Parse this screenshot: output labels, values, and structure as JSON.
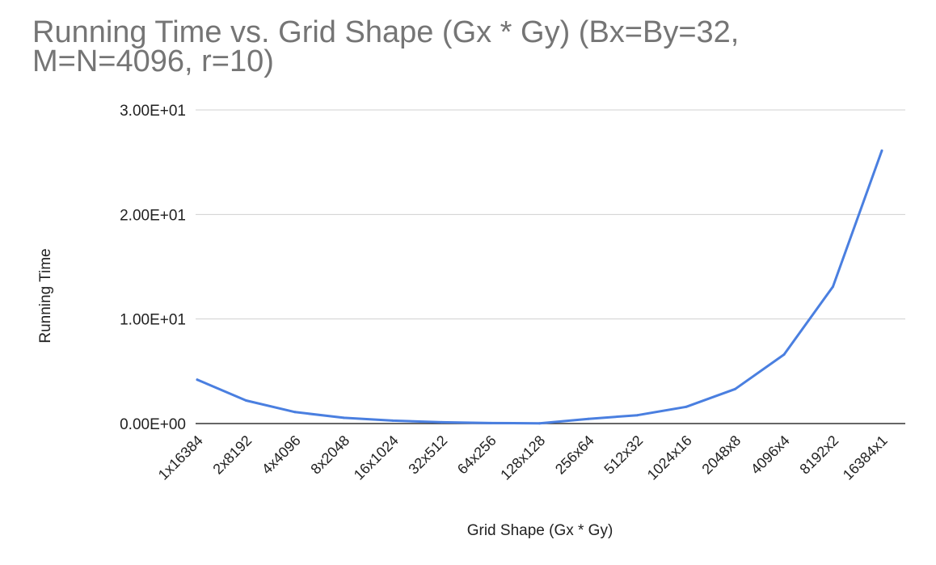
{
  "chart_data": {
    "type": "line",
    "title": "Running Time vs. Grid Shape (Gx * Gy) (Bx=By=32, M=N=4096, r=10)",
    "xlabel": "Grid Shape (Gx * Gy)",
    "ylabel": "Running Time",
    "categories": [
      "1x16384",
      "2x8192",
      "4x4096",
      "8x2048",
      "16x1024",
      "32x512",
      "64x256",
      "128x128",
      "256x64",
      "512x32",
      "1024x16",
      "2048x8",
      "4096x4",
      "8192x2",
      "16384x1"
    ],
    "series": [
      {
        "values": [
          4.2,
          2.2,
          1.1,
          0.55,
          0.28,
          0.12,
          0.05,
          0.02,
          0.45,
          0.8,
          1.6,
          3.3,
          6.6,
          13.1,
          26.1
        ]
      }
    ],
    "ylim": [
      0,
      30
    ],
    "yticks": [
      "0.00E+00",
      "1.00E+01",
      "2.00E+01",
      "3.00E+01"
    ],
    "grid": true,
    "legend": "none",
    "colors": {
      "line": "#4a7fe0",
      "grid": "#d0d0d0",
      "baseline": "#333333",
      "title": "#757575",
      "text": "#222222"
    }
  }
}
